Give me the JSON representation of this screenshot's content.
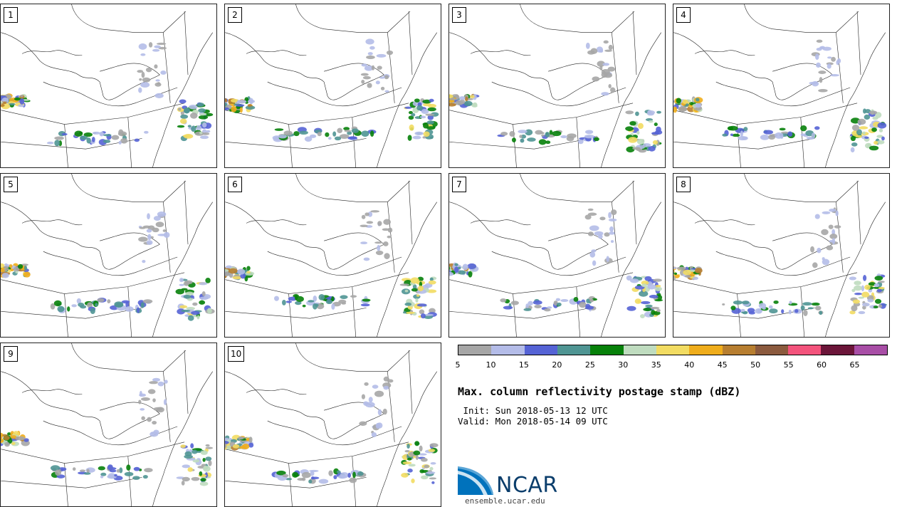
{
  "panels": [
    {
      "label": "1"
    },
    {
      "label": "2"
    },
    {
      "label": "3"
    },
    {
      "label": "4"
    },
    {
      "label": "5"
    },
    {
      "label": "6"
    },
    {
      "label": "7"
    },
    {
      "label": "8"
    },
    {
      "label": "9"
    },
    {
      "label": "10"
    }
  ],
  "colorbar": {
    "colors": [
      "#a6a6a6",
      "#b4bce8",
      "#5563d5",
      "#4f9593",
      "#07810a",
      "#bfdcbf",
      "#f2dc62",
      "#efad1c",
      "#b77e30",
      "#8b5a3e",
      "#f3537c",
      "#6b1539",
      "#a84ea6"
    ],
    "ticks": [
      "5",
      "10",
      "15",
      "20",
      "25",
      "30",
      "35",
      "40",
      "45",
      "50",
      "55",
      "60",
      "65"
    ]
  },
  "title": "Max. column reflectivity postage stamp (dBZ)",
  "init": " Init: Sun 2018-05-13 12 UTC",
  "valid": "Valid: Mon 2018-05-14 09 UTC",
  "logo": {
    "text": "NCAR"
  },
  "site": "ensemble.ucar.edu"
}
